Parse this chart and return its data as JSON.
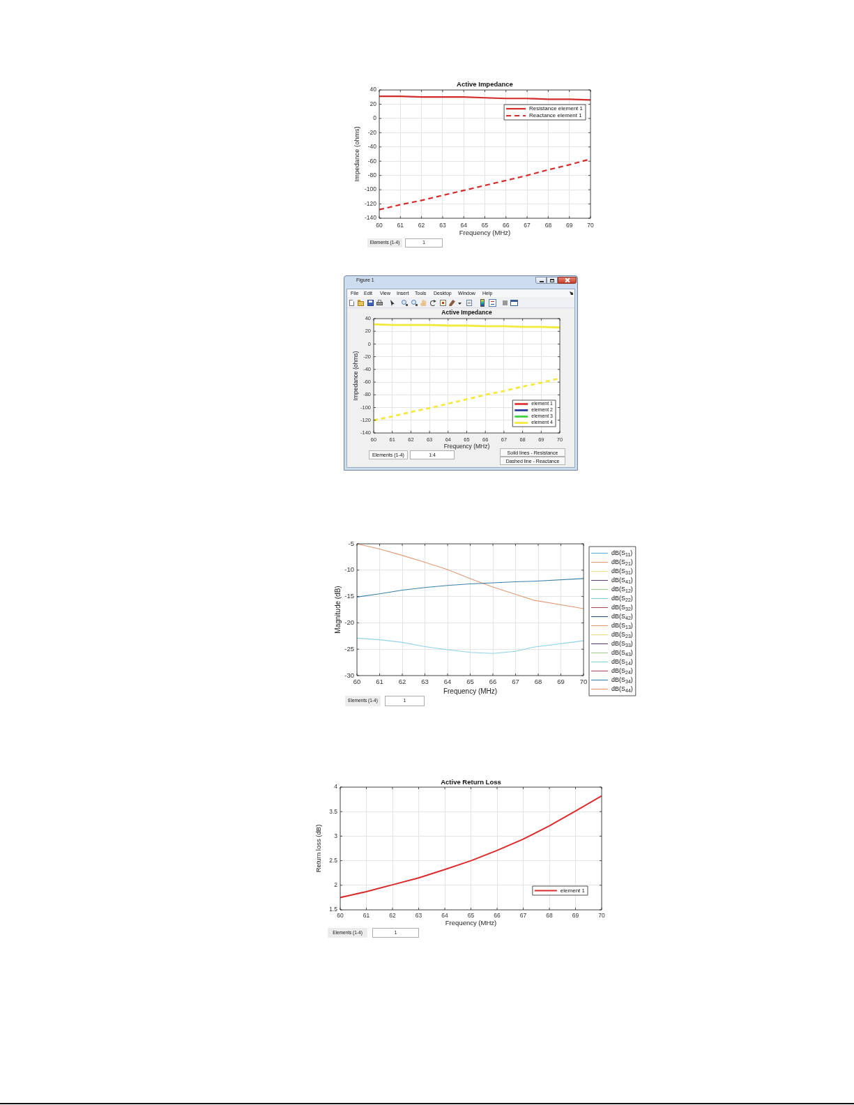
{
  "chart_data": [
    {
      "type": "line",
      "title": "Active Impedance",
      "xlabel": "Frequency (MHz)",
      "ylabel": "Impedance (ohms)",
      "x": [
        60,
        61,
        62,
        63,
        64,
        65,
        66,
        67,
        68,
        69,
        70
      ],
      "series": [
        {
          "name": "Resistance element 1",
          "color": "#d42b2b",
          "values": [
            31,
            31,
            30,
            30,
            30,
            29,
            28,
            28,
            27,
            27,
            26
          ]
        },
        {
          "name": "Reactance element 1",
          "color": "#d42b2b",
          "line_style": "dashed",
          "values": [
            -128,
            -121,
            -115,
            -108,
            -101,
            -94,
            -87,
            -80,
            -72,
            -65,
            -57
          ]
        }
      ],
      "xlim": [
        60,
        70
      ],
      "xticks": [
        60,
        61,
        62,
        63,
        64,
        65,
        66,
        67,
        68,
        69,
        70
      ],
      "ylim": [
        -140,
        40
      ],
      "yticks": [
        -140,
        -120,
        -100,
        -80,
        -60,
        -40,
        -20,
        0,
        20,
        40
      ],
      "grid": true,
      "legend": "top right",
      "annotations": [
        "Elements (1-4)",
        "1"
      ]
    },
    {
      "type": "line",
      "title": "Active Impedance",
      "xlabel": "Frequency (MHz)",
      "ylabel": "Impedance (ohms)",
      "x": [
        60,
        61,
        62,
        63,
        64,
        65,
        66,
        67,
        68,
        69,
        70
      ],
      "series": [
        {
          "name": "element 1",
          "color": "#e23636",
          "values": [
            null,
            null,
            null,
            null,
            null,
            null,
            null,
            null,
            null,
            null,
            null
          ]
        },
        {
          "name": "element 2",
          "color": "#2b3d9c",
          "values": [
            null,
            null,
            null,
            null,
            null,
            null,
            null,
            null,
            null,
            null,
            null
          ]
        },
        {
          "name": "element 3",
          "color": "#3fd23f",
          "values": [
            null,
            null,
            null,
            null,
            null,
            null,
            null,
            null,
            null,
            null,
            null
          ]
        },
        {
          "name": "element 4",
          "color": "#f2ea3c",
          "values": [
            31,
            30,
            30,
            30,
            29,
            29,
            28,
            28,
            27,
            27,
            26
          ]
        },
        {
          "color": "#f2ea3c",
          "line_style": "dashed",
          "values": [
            -120,
            -114,
            -107,
            -101,
            -94,
            -87,
            -80,
            -74,
            -67,
            -61,
            -54
          ]
        }
      ],
      "xlim": [
        60,
        70
      ],
      "xticks": [
        60,
        61,
        62,
        63,
        64,
        65,
        66,
        67,
        68,
        69,
        70
      ],
      "ylim": [
        -140,
        40
      ],
      "yticks": [
        -140,
        -120,
        -100,
        -80,
        -60,
        -40,
        -20,
        0,
        20,
        40
      ],
      "grid": true,
      "legend": "bottom right",
      "annotations": [
        "Figure 1",
        "File",
        "Edit",
        "View",
        "Insert",
        "Tools",
        "Desktop",
        "Window",
        "Help",
        "Elements (1-4)",
        "1:4",
        "Solid lines - Resistance",
        "Dashed line - Reactance"
      ]
    },
    {
      "type": "line",
      "xlabel": "Frequency (MHz)",
      "ylabel": "Magnitude (dB)",
      "x": [
        60,
        61,
        62,
        63,
        64,
        65,
        66,
        67,
        67.8,
        70
      ],
      "series": [
        {
          "name": "dB(S$_{11}$)",
          "color": "#5eaad4",
          "values": [
            null,
            null,
            null,
            null,
            null,
            null,
            null,
            null,
            null,
            null
          ]
        },
        {
          "name": "dB(S$_{21}$)",
          "color": "#dd9a76",
          "values": [
            null,
            null,
            null,
            null,
            null,
            null,
            null,
            null,
            null,
            null
          ]
        },
        {
          "name": "dB(S$_{31}$)",
          "color": "#efdf8a",
          "values": [
            null,
            null,
            null,
            null,
            null,
            null,
            null,
            null,
            null,
            null
          ]
        },
        {
          "name": "dB(S$_{41}$)",
          "color": "#5e3f78",
          "values": [
            null,
            null,
            null,
            null,
            null,
            null,
            null,
            null,
            null,
            null
          ]
        },
        {
          "name": "dB(S$_{12}$)",
          "color": "#a6c98c",
          "values": [
            null,
            null,
            null,
            null,
            null,
            null,
            null,
            null,
            null,
            null
          ]
        },
        {
          "name": "dB(S$_{22}$)",
          "color": "#80cde3",
          "values": [
            null,
            null,
            null,
            null,
            null,
            null,
            null,
            null,
            null,
            null
          ]
        },
        {
          "name": "dB(S$_{32}$)",
          "color": "#a8495f",
          "values": [
            null,
            null,
            null,
            null,
            null,
            null,
            null,
            null,
            null,
            null
          ]
        },
        {
          "name": "dB(S$_{42}$)",
          "color": "#2d4f73",
          "values": [
            null,
            null,
            null,
            null,
            null,
            null,
            null,
            null,
            null,
            null
          ]
        },
        {
          "name": "dB(S$_{13}$)",
          "color": "#dd9a76",
          "values": [
            null,
            null,
            null,
            null,
            null,
            null,
            null,
            null,
            null,
            null
          ]
        },
        {
          "name": "dB(S$_{23}$)",
          "color": "#efdf8a",
          "values": [
            null,
            null,
            null,
            null,
            null,
            null,
            null,
            null,
            null,
            null
          ]
        },
        {
          "name": "dB(S$_{33}$)",
          "color": "#5e3f78",
          "values": [
            null,
            null,
            null,
            null,
            null,
            null,
            null,
            null,
            null,
            null
          ]
        },
        {
          "name": "dB(S$_{43}$)",
          "color": "#a6c98c",
          "values": [
            null,
            null,
            null,
            null,
            null,
            null,
            null,
            null,
            null,
            null
          ]
        },
        {
          "name": "dB(S$_{14}$)",
          "color": "#8fd3e6",
          "values": [
            -22.9,
            -23.2,
            -23.7,
            -24.5,
            -25.1,
            -25.6,
            -25.8,
            -25.4,
            -24.6,
            -23.4
          ]
        },
        {
          "name": "dB(S$_{24}$)",
          "color": "#a8495f",
          "values": [
            null,
            null,
            null,
            null,
            null,
            null,
            null,
            null,
            null,
            null
          ]
        },
        {
          "name": "dB(S$_{34}$)",
          "color": "#3b7fa8",
          "values": [
            -15.1,
            -14.5,
            -13.8,
            -13.3,
            -12.9,
            -12.6,
            -12.4,
            -12.2,
            -12.1,
            -11.6
          ]
        },
        {
          "name": "dB(S$_{44}$)",
          "color": "#dd9a76",
          "values": [
            -5.0,
            -6.0,
            -7.2,
            -8.5,
            -9.9,
            -11.6,
            -13.2,
            -14.6,
            -15.7,
            -17.3
          ]
        }
      ],
      "xlim": [
        60,
        70
      ],
      "xticks": [
        60,
        61,
        62,
        63,
        64,
        65,
        66,
        67,
        68,
        69,
        70
      ],
      "ylim": [
        -30,
        -5
      ],
      "yticks": [
        -30,
        -25,
        -20,
        -15,
        -10,
        -5
      ],
      "grid": true,
      "legend": "right",
      "annotations": [
        "Elements (1-4)",
        "1"
      ]
    },
    {
      "type": "line",
      "title": "Active Return Loss",
      "xlabel": "Frequency (MHz)",
      "ylabel": "Return loss (dB)",
      "x": [
        60,
        61,
        62,
        63,
        64,
        65,
        66,
        67,
        68,
        69,
        70
      ],
      "series": [
        {
          "name": "element 1",
          "color": "#d92b2b",
          "values": [
            1.75,
            1.87,
            2.01,
            2.15,
            2.32,
            2.5,
            2.71,
            2.94,
            3.21,
            3.51,
            3.82
          ]
        }
      ],
      "xlim": [
        60,
        70
      ],
      "xticks": [
        60,
        61,
        62,
        63,
        64,
        65,
        66,
        67,
        68,
        69,
        70
      ],
      "ylim": [
        1.5,
        4
      ],
      "yticks": [
        1.5,
        2,
        2.5,
        3,
        3.5,
        4
      ],
      "grid": true,
      "legend": "bottom right",
      "annotations": [
        "Elements (1-4)",
        "1"
      ]
    }
  ]
}
